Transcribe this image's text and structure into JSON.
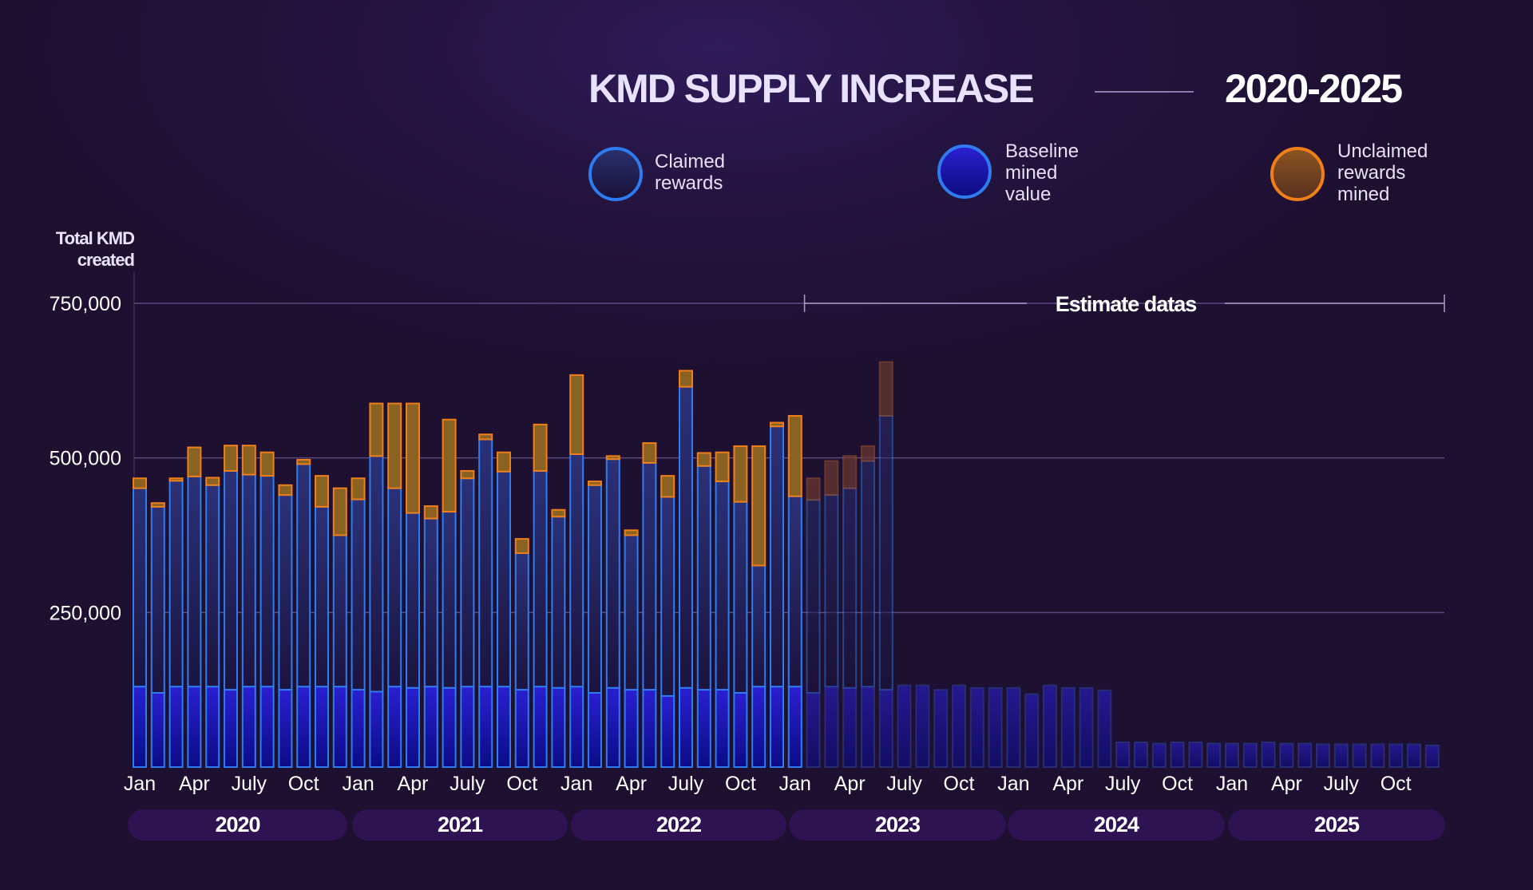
{
  "header": {
    "title": "KMD SUPPLY INCREASE",
    "years": "2020-2025"
  },
  "legend": [
    {
      "label_lines": [
        "Claimed",
        "rewards"
      ],
      "color": "#2f7cf0"
    },
    {
      "label_lines": [
        "Baseline",
        "mined",
        "value"
      ],
      "color": "#2a1fd0"
    },
    {
      "label_lines": [
        "Unclaimed",
        "rewards",
        "mined"
      ],
      "color": "#f07f1a"
    }
  ],
  "chart_data": {
    "type": "bar",
    "stacked": true,
    "ylabel_lines": [
      "Total KMD",
      "created"
    ],
    "ylim": [
      0,
      750000
    ],
    "yticks": [
      250000,
      500000,
      750000
    ],
    "ytick_labels": [
      "250,000",
      "500,000",
      "750,000"
    ],
    "grid": true,
    "estimate_label": "Estimate datas",
    "estimate_start": "Feb 2023",
    "estimate_end": "Dec 2025",
    "year_labels": [
      "2020",
      "2021",
      "2022",
      "2023",
      "2024",
      "2025"
    ],
    "month_tick_labels": [
      "Jan",
      "Apr",
      "July",
      "Oct"
    ],
    "categories": [
      "Jan 2020",
      "Feb 2020",
      "Mar 2020",
      "Apr 2020",
      "May 2020",
      "Jun 2020",
      "Jul 2020",
      "Aug 2020",
      "Sep 2020",
      "Oct 2020",
      "Nov 2020",
      "Dec 2020",
      "Jan 2021",
      "Feb 2021",
      "Mar 2021",
      "Apr 2021",
      "May 2021",
      "Jun 2021",
      "Jul 2021",
      "Aug 2021",
      "Sep 2021",
      "Oct 2021",
      "Nov 2021",
      "Dec 2021",
      "Jan 2022",
      "Feb 2022",
      "Mar 2022",
      "Apr 2022",
      "May 2022",
      "Jun 2022",
      "Jul 2022",
      "Aug 2022",
      "Sep 2022",
      "Oct 2022",
      "Nov 2022",
      "Dec 2022",
      "Jan 2023",
      "Feb 2023",
      "Mar 2023",
      "Apr 2023",
      "May 2023",
      "Jun 2023",
      "Jul 2023",
      "Aug 2023",
      "Sep 2023",
      "Oct 2023",
      "Nov 2023",
      "Dec 2023",
      "Jan 2024",
      "Feb 2024",
      "Mar 2024",
      "Apr 2024",
      "May 2024",
      "Jun 2024",
      "Jul 2024",
      "Aug 2024",
      "Sep 2024",
      "Oct 2024",
      "Nov 2024",
      "Dec 2024",
      "Jan 2025",
      "Feb 2025",
      "Mar 2025",
      "Apr 2025",
      "May 2025",
      "Jun 2025",
      "Jul 2025",
      "Aug 2025",
      "Sep 2025",
      "Oct 2025",
      "Nov 2025",
      "Dec 2025"
    ],
    "series": [
      {
        "name": "Baseline mined value",
        "color": "#2a1fd0",
        "values": [
          130000,
          120000,
          130000,
          130000,
          130000,
          125000,
          130000,
          130000,
          125000,
          130000,
          130000,
          130000,
          125000,
          122000,
          130000,
          128000,
          130000,
          128000,
          130000,
          130000,
          130000,
          125000,
          130000,
          128000,
          130000,
          120000,
          128000,
          125000,
          125000,
          115000,
          128000,
          125000,
          125000,
          120000,
          130000,
          130000,
          130000,
          120000,
          130000,
          128000,
          130000,
          125000,
          132000,
          132000,
          125000,
          132000,
          128000,
          128000,
          128000,
          118000,
          132000,
          128000,
          128000,
          124000,
          40000,
          40000,
          38000,
          40000,
          40000,
          38000,
          38000,
          38000,
          40000,
          38000,
          38000,
          37000,
          37000,
          37000,
          37000,
          37000,
          37000,
          35000
        ]
      },
      {
        "name": "Claimed rewards",
        "color": "#2f7cf0",
        "values": [
          321000,
          301000,
          333000,
          340000,
          326000,
          354000,
          343000,
          341000,
          315000,
          360000,
          291000,
          245000,
          308000,
          381000,
          321000,
          283000,
          272000,
          285000,
          337000,
          400000,
          348000,
          221000,
          349000,
          277000,
          376000,
          336000,
          370000,
          250000,
          367000,
          322000,
          487000,
          362000,
          337000,
          309000,
          196000,
          421000,
          308000,
          312000,
          310000,
          323000,
          365000,
          443000,
          0,
          0,
          0,
          0,
          0,
          0,
          0,
          0,
          0,
          0,
          0,
          0,
          0,
          0,
          0,
          0,
          0,
          0,
          0,
          0,
          0,
          0,
          0,
          0,
          0,
          0,
          0,
          0,
          0,
          0
        ]
      },
      {
        "name": "Unclaimed rewards mined",
        "color": "#f07f1a",
        "values": [
          16000,
          6000,
          4000,
          47000,
          12000,
          41000,
          47000,
          38000,
          16000,
          7000,
          50000,
          76000,
          34000,
          85000,
          137000,
          177000,
          20000,
          149000,
          12000,
          8000,
          31000,
          23000,
          75000,
          11000,
          128000,
          6000,
          5000,
          8000,
          32000,
          34000,
          26000,
          21000,
          47000,
          90000,
          193000,
          6000,
          130000,
          35000,
          55000,
          52000,
          24000,
          87000,
          0,
          0,
          0,
          0,
          0,
          0,
          0,
          0,
          0,
          0,
          0,
          0,
          0,
          0,
          0,
          0,
          0,
          0,
          0,
          0,
          0,
          0,
          0,
          0,
          0,
          0,
          0,
          0,
          0,
          0
        ]
      }
    ]
  }
}
